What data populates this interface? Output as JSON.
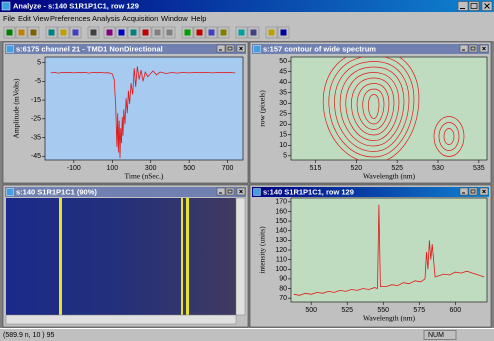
{
  "window": {
    "title": "Analyze - s:140 S1R1P1C1, row 129",
    "menu": [
      "File",
      "Edit",
      "View",
      "Preferences",
      "Analysis",
      "Acquisition",
      "Window",
      "Help"
    ]
  },
  "panels": [
    {
      "title": "s:6175 channel 21 - TMD1 NonDirectional",
      "plot": {
        "type": "line",
        "x_label": "Time (nSec.)",
        "y_label": "Amplitude (mVolts)",
        "xlim": [
          -250,
          780
        ],
        "ylim": [
          -47,
          8
        ],
        "xticks": [
          -100,
          100,
          300,
          500,
          700
        ],
        "yticks": [
          5,
          -5,
          -15,
          -25,
          -35,
          -45
        ],
        "background": "#a6caf0",
        "series": [
          {
            "color": "#e01818",
            "x": [
              -220,
              -200,
              -180,
              -160,
              -140,
              -120,
              -100,
              -80,
              -60,
              -40,
              -20,
              0,
              20,
              40,
              60,
              80,
              100,
              110,
              118,
              124,
              128,
              132,
              136,
              140,
              144,
              148,
              152,
              156,
              160,
              166,
              172,
              178,
              184,
              190,
              198,
              206,
              214,
              222,
              230,
              240,
              250,
              260,
              272,
              284,
              298,
              312,
              330,
              350,
              380,
              410,
              440,
              470,
              500,
              530,
              560,
              590,
              620,
              650,
              680,
              710,
              740
            ],
            "values": [
              -0.5,
              -0.3,
              -0.6,
              -0.2,
              -0.4,
              -0.3,
              -0.5,
              -0.2,
              -0.4,
              -0.3,
              -0.6,
              -0.2,
              -0.4,
              -0.3,
              -0.5,
              -0.4,
              -1,
              -4,
              -18,
              -40,
              -22,
              -43,
              -26,
              -46,
              -30,
              -38,
              -24,
              -34,
              -20,
              -28,
              -14,
              -22,
              -10,
              -17,
              -6,
              -12,
              2,
              -8,
              3,
              -4,
              1,
              -5,
              0,
              -2.5,
              -1,
              0.5,
              -1.5,
              0,
              -0.8,
              -0.3,
              -0.6,
              -0.2,
              -0.5,
              -0.3,
              -0.4,
              -0.2,
              -0.5,
              -0.3,
              -0.4,
              -0.3,
              -0.5
            ]
          }
        ]
      }
    },
    {
      "title": "s:157 contour of wide spectrum",
      "plot": {
        "type": "contour",
        "x_label": "Wavelength (nm)",
        "y_label": "row (pixels)",
        "xlim": [
          512,
          536
        ],
        "ylim": [
          3,
          52
        ],
        "xticks": [
          515,
          520,
          525,
          530,
          535
        ],
        "yticks": [
          50,
          45,
          40,
          35,
          30,
          25,
          20,
          15,
          10,
          5
        ],
        "background": "#c0dcc0",
        "color": "#e01818"
      }
    },
    {
      "title": "s:140 S1R1P1C1 (90%)"
    },
    {
      "title": "s:140 S1R1P1C1, row 129",
      "plot": {
        "type": "line",
        "x_label": "Wavelength (nm)",
        "y_label": "intensity (units)",
        "xlim": [
          486,
          622
        ],
        "ylim": [
          66,
          174
        ],
        "xticks": [
          500,
          525,
          550,
          575,
          600
        ],
        "yticks": [
          70,
          80,
          90,
          100,
          110,
          120,
          130,
          140,
          150,
          160,
          170
        ],
        "background": "#c0dcc0",
        "series": [
          {
            "color": "#e01818",
            "x": [
              488,
              492,
              496,
              500,
              504,
              508,
              512,
              516,
              520,
              524,
              528,
              532,
              536,
              540,
              544,
              546,
              547,
              548,
              552,
              556,
              560,
              564,
              568,
              572,
              576,
              579,
              580,
              581,
              582,
              583,
              584,
              586,
              588,
              592,
              596,
              600,
              604,
              608,
              612,
              616,
              620
            ],
            "values": [
              74,
              73,
              75,
              74,
              76,
              75,
              77,
              76,
              78,
              77,
              79,
              78,
              80,
              79,
              81,
              80,
              167,
              82,
              82,
              84,
              83,
              86,
              85,
              88,
              87,
              90,
              118,
              100,
              130,
              110,
              126,
              92,
              93,
              95,
              94,
              97,
              96,
              98,
              96,
              94,
              92
            ]
          }
        ]
      }
    }
  ],
  "status": {
    "text": "(589.9 n, 10 ) 95",
    "indicator": "NUM"
  }
}
